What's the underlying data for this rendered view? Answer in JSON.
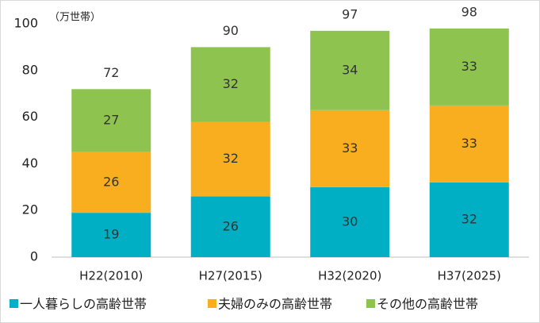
{
  "chart_data": {
    "type": "stacked_bar",
    "unit_label": "（万世帯）",
    "categories": [
      "H22(2010)",
      "H27(2015)",
      "H32(2020)",
      "H37(2025)"
    ],
    "series": [
      {
        "name": "一人暮らしの高齢世帯",
        "color": "#00afc4",
        "values": [
          19,
          26,
          30,
          32
        ]
      },
      {
        "name": "夫婦のみの高齢世帯",
        "color": "#f9ae1f",
        "values": [
          26,
          32,
          33,
          33
        ]
      },
      {
        "name": "その他の高齢世帯",
        "color": "#8ec34f",
        "values": [
          27,
          32,
          34,
          33
        ]
      }
    ],
    "totals": [
      72,
      90,
      97,
      98
    ],
    "ylim": [
      0,
      100
    ],
    "yticks": [
      0,
      20,
      40,
      60,
      80,
      100
    ],
    "legend": "bottom"
  }
}
